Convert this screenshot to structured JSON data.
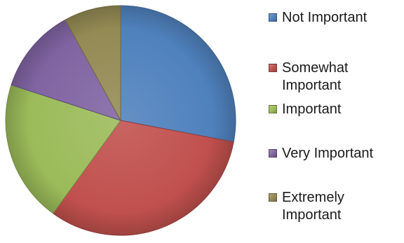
{
  "chart_data": {
    "type": "pie",
    "title": "",
    "slices": [
      {
        "label": "Not Important",
        "value": 28,
        "color": "#4f81bd"
      },
      {
        "label": "Somewhat Important",
        "value": 32,
        "color": "#c0504d"
      },
      {
        "label": "Important",
        "value": 20,
        "color": "#9bbb59"
      },
      {
        "label": "Very Important",
        "value": 12,
        "color": "#8064a2"
      },
      {
        "label": "Extremely Important",
        "value": 8,
        "color": "#948a54"
      }
    ],
    "legend_position": "right"
  }
}
